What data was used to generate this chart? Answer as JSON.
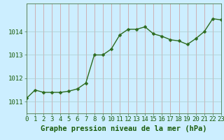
{
  "x": [
    0,
    1,
    2,
    3,
    4,
    5,
    6,
    7,
    8,
    9,
    10,
    11,
    12,
    13,
    14,
    15,
    16,
    17,
    18,
    19,
    20,
    21,
    22,
    23
  ],
  "y": [
    1011.15,
    1011.5,
    1011.4,
    1011.4,
    1011.4,
    1011.45,
    1011.55,
    1011.8,
    1013.0,
    1013.0,
    1013.25,
    1013.85,
    1014.1,
    1014.1,
    1014.2,
    1013.9,
    1013.8,
    1013.65,
    1013.6,
    1013.45,
    1013.7,
    1014.0,
    1014.55,
    1014.5
  ],
  "line_color": "#2d6b1e",
  "marker_color": "#2d6b1e",
  "bg_color": "#cceeff",
  "grid_h_color": "#aacccc",
  "grid_v_color": "#cc9999",
  "xlabel": "Graphe pression niveau de la mer (hPa)",
  "xlabel_color": "#1a5c0a",
  "ylabel_ticks": [
    1011,
    1012,
    1013,
    1014
  ],
  "xlim": [
    0,
    23
  ],
  "ylim": [
    1010.5,
    1015.2
  ],
  "xtick_labels": [
    "0",
    "1",
    "2",
    "3",
    "4",
    "5",
    "6",
    "7",
    "8",
    "9",
    "10",
    "11",
    "12",
    "13",
    "14",
    "15",
    "16",
    "17",
    "18",
    "19",
    "20",
    "21",
    "22",
    "23"
  ],
  "font_size_xlabel": 7.5,
  "font_size_ticks": 6.5,
  "marker_size": 2.5,
  "line_width": 1.0
}
